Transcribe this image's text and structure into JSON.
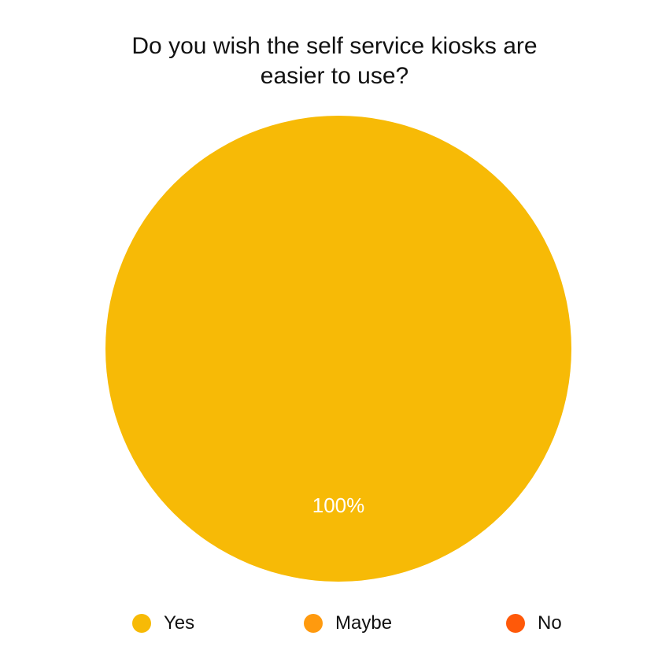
{
  "chart_data": {
    "type": "pie",
    "title": "Do you wish the self service kiosks are easier to use?",
    "title_lines": [
      "Do you wish the self service kiosks are",
      "easier to use?"
    ],
    "categories": [
      "Yes",
      "Maybe",
      "No"
    ],
    "values": [
      100,
      0,
      0
    ],
    "data_labels": [
      "100%"
    ],
    "colors": [
      "#F7BA06",
      "#FF9A0E",
      "#FF5909"
    ],
    "legend_position": "bottom",
    "label_color": "#FFFFFF"
  }
}
